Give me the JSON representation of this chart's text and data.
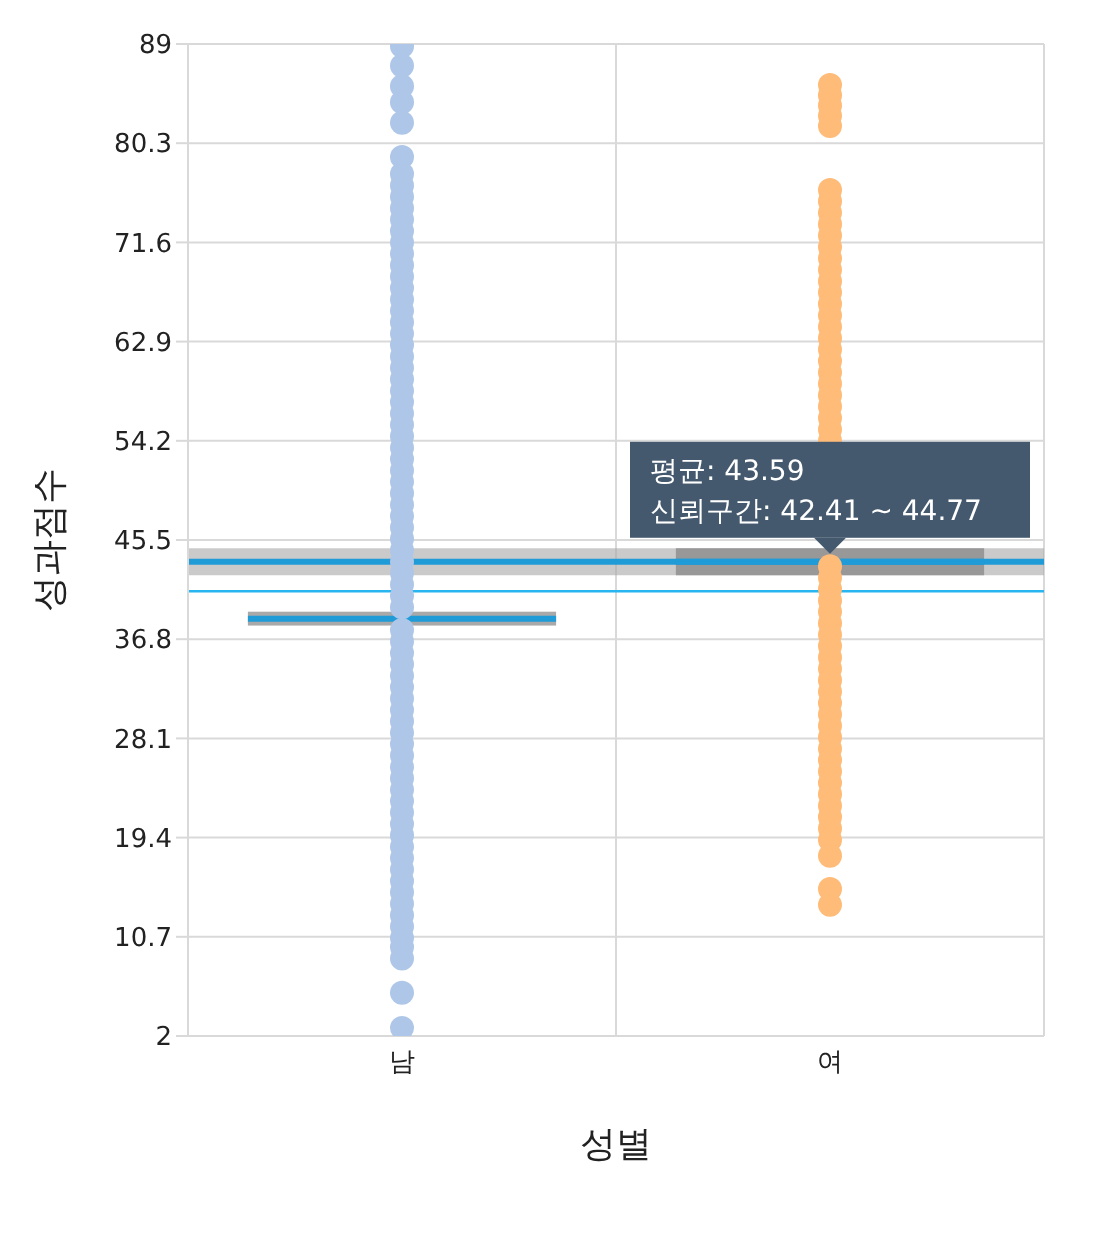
{
  "chart_data": {
    "type": "scatter",
    "xlabel": "성별",
    "ylabel": "성과점수",
    "categories": [
      "남",
      "여"
    ],
    "ylim": [
      2,
      89
    ],
    "yticks": [
      2,
      10.7,
      19.4,
      28.1,
      36.8,
      45.5,
      54.2,
      62.9,
      71.6,
      80.3,
      89
    ],
    "grid": true,
    "legend": false,
    "marker": "circle",
    "series": [
      {
        "color": "#aec7e8",
        "x": [
          "남",
          "남",
          "남",
          "남",
          "남",
          "남",
          "남",
          "남",
          "남",
          "남",
          "남",
          "남",
          "남",
          "남",
          "남",
          "남",
          "남",
          "남",
          "남",
          "남",
          "남",
          "남",
          "남",
          "남",
          "남",
          "남",
          "남",
          "남",
          "남",
          "남",
          "남",
          "남",
          "남",
          "남",
          "남",
          "남",
          "남",
          "남",
          "남",
          "남",
          "남",
          "남",
          "남",
          "남",
          "남",
          "남",
          "남",
          "남",
          "남",
          "남",
          "남",
          "남",
          "남",
          "남",
          "남",
          "남",
          "남",
          "남",
          "남",
          "남",
          "남",
          "남",
          "남",
          "남",
          "남",
          "남",
          "남",
          "남",
          "남",
          "남",
          "남",
          "남",
          "남",
          "남",
          "남",
          "남",
          "남",
          "남"
        ],
        "values": [
          88.8,
          87.1,
          85.3,
          83.9,
          82.1,
          79.1,
          77.6,
          76.6,
          75.6,
          74.6,
          73.6,
          72.6,
          71.6,
          70.6,
          69.6,
          68.6,
          67.6,
          66.6,
          65.6,
          64.6,
          63.6,
          62.6,
          61.6,
          60.6,
          59.6,
          58.6,
          57.6,
          56.6,
          55.6,
          54.6,
          53.6,
          52.6,
          51.6,
          50.6,
          49.6,
          48.6,
          47.6,
          46.6,
          45.6,
          44.6,
          43.6,
          42.6,
          41.6,
          40.6,
          39.6,
          null,
          37.6,
          36.6,
          35.6,
          34.6,
          33.6,
          32.6,
          31.6,
          30.6,
          29.6,
          28.6,
          27.6,
          26.6,
          25.6,
          24.6,
          23.6,
          22.6,
          21.6,
          20.6,
          19.6,
          18.6,
          17.6,
          16.6,
          15.6,
          14.6,
          13.6,
          12.6,
          11.6,
          10.6,
          9.8,
          8.8,
          5.8,
          2.7
        ]
      },
      {
        "color": "#ffbb78",
        "x": [
          "여",
          "여",
          "여",
          "여",
          "여",
          "여",
          "여",
          "여",
          "여",
          "여",
          "여",
          "여",
          "여",
          "여",
          "여",
          "여",
          "여",
          "여",
          "여",
          "여",
          "여",
          "여",
          "여",
          "여",
          "여",
          "여",
          "여",
          "여",
          "여",
          "여",
          "여",
          "여",
          "여",
          "여",
          "여",
          "여",
          "여",
          "여",
          "여",
          "여",
          "여",
          "여",
          "여",
          "여",
          "여",
          "여",
          "여",
          "여",
          "여",
          "여",
          "여",
          "여",
          "여",
          "여",
          "여",
          "여",
          "여",
          "여",
          "여",
          "여",
          "여",
          "여",
          "여",
          "여",
          "여",
          "여"
        ],
        "values": [
          85.4,
          84.5,
          83.6,
          82.7,
          81.8,
          76.2,
          75.2,
          74.2,
          73.2,
          72.2,
          71.2,
          70.2,
          69.2,
          68.2,
          67.2,
          66.2,
          65.2,
          64.2,
          63.2,
          62.2,
          61.2,
          60.2,
          59.2,
          58.2,
          57.2,
          56.2,
          55.2,
          54.2,
          null,
          null,
          null,
          null,
          null,
          null,
          null,
          null,
          null,
          null,
          43.2,
          42.2,
          41.2,
          40.2,
          39.2,
          38.2,
          37.2,
          36.2,
          35.2,
          34.2,
          33.2,
          32.2,
          31.2,
          30.2,
          29.2,
          28.2,
          27.2,
          26.2,
          25.2,
          24.2,
          23.2,
          22.2,
          21.2,
          20.2,
          19.2,
          17.8,
          14.9,
          13.5
        ]
      },
      {
        "type": "box",
        "color": "#808080",
        "x": [
          "남",
          "여"
        ],
        "boxes": [
          {
            "low": 38.0,
            "q1": 38.0,
            "median": 38.6,
            "q3": 39.2,
            "high": 39.2
          },
          {
            "low": 42.41,
            "q1": 42.41,
            "median": 43.59,
            "q3": 44.77,
            "high": 44.77
          }
        ]
      }
    ],
    "ref_lines": [
      {
        "axis": "y",
        "value": 43.59,
        "color": "#1f9bd7"
      },
      {
        "axis": "y",
        "value": 41.0,
        "color": "#29b6f0"
      }
    ],
    "bands": [
      {
        "axis": "y",
        "from": 42.41,
        "to": 44.77,
        "color": "#a6a6a6"
      }
    ],
    "annotations": [
      {
        "text": "평균: 43.59",
        "x": "여",
        "y": 43.59
      },
      "신뢰구간: 42.41 ~ 44.77"
    ]
  }
}
